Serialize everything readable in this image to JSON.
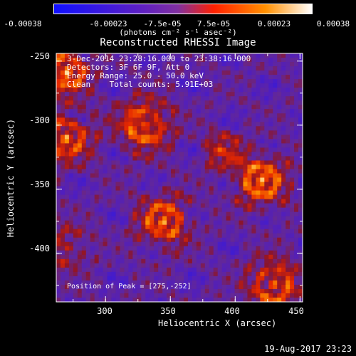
{
  "colorbar": {
    "ticks": [
      "-0.00038",
      "-0.00023",
      "-7.5e-05",
      "7.5e-05",
      "0.00023",
      "0.00038"
    ],
    "units": "(photons cm⁻² s⁻¹ asec⁻²)",
    "stops": [
      "#1010ff",
      "#6020c0",
      "#8030a0",
      "#ff2000",
      "#ff9000",
      "#ffffff"
    ]
  },
  "chart_data": {
    "type": "heatmap",
    "title": "Reconstructed RHESSI Image",
    "xlabel": "Heliocentric X (arcsec)",
    "ylabel": "Heliocentric Y (arcsec)",
    "xlim": [
      262,
      452
    ],
    "ylim": [
      -438,
      -244
    ],
    "xticks": [
      300,
      350,
      400,
      450
    ],
    "yticks": [
      -250,
      -300,
      -350,
      -400
    ],
    "info_lines": [
      "3-Dec-2014 23:28:16.000 to 23:38:16.000",
      "Detectors: 3F 6F 9F, Att 0",
      "Energy Range: 25.0 - 50.0 keV",
      "Clean    Total counts: 5.91E+03"
    ],
    "peak_label": "Position of Peak = [275,-252]",
    "peak": [
      275,
      -252
    ],
    "sources": [
      {
        "x": 270,
        "y": -258,
        "amp": 1.0,
        "r": 12
      },
      {
        "x": 270,
        "y": -310,
        "amp": 0.8,
        "r": 14
      },
      {
        "x": 330,
        "y": -300,
        "amp": 0.9,
        "r": 14
      },
      {
        "x": 345,
        "y": -375,
        "amp": 0.85,
        "r": 14
      },
      {
        "x": 420,
        "y": -343,
        "amp": 0.95,
        "r": 14
      },
      {
        "x": 390,
        "y": -320,
        "amp": 0.6,
        "r": 10
      },
      {
        "x": 430,
        "y": -425,
        "amp": 0.85,
        "r": 14
      },
      {
        "x": 270,
        "y": -395,
        "amp": 0.5,
        "r": 12
      }
    ]
  },
  "timestamp": "19-Aug-2017 23:23"
}
